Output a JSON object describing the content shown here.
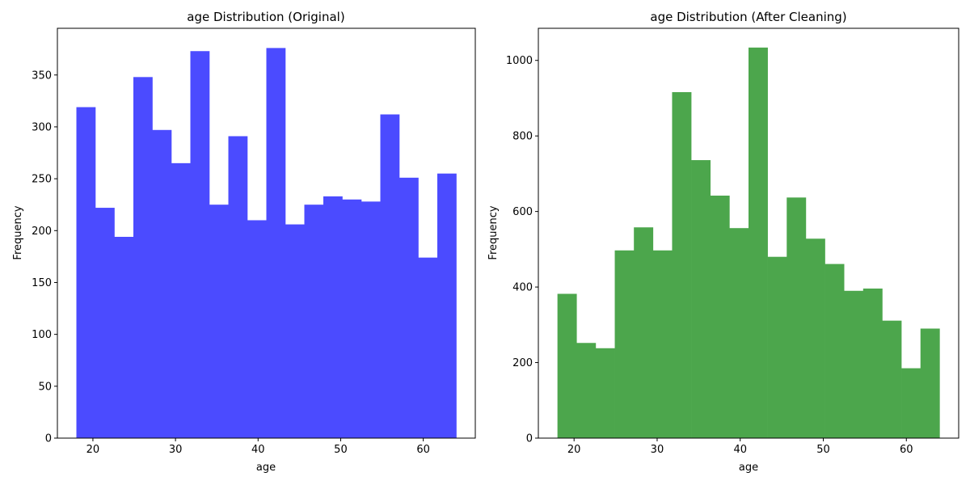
{
  "chart_data": [
    {
      "type": "bar",
      "title": "age Distribution (Original)",
      "xlabel": "age",
      "ylabel": "Frequency",
      "xlim": [
        15.7,
        66.3
      ],
      "ylim": [
        0,
        395
      ],
      "xticks": [
        20,
        30,
        40,
        50,
        60
      ],
      "yticks": [
        0,
        50,
        100,
        150,
        200,
        250,
        300,
        350
      ],
      "bin_edges": [
        18.0,
        20.3,
        22.6,
        24.9,
        27.2,
        29.5,
        31.8,
        34.1,
        36.4,
        38.7,
        41.0,
        43.3,
        45.6,
        47.9,
        50.2,
        52.5,
        54.8,
        57.1,
        59.4,
        61.7,
        64.0
      ],
      "values": [
        319,
        222,
        194,
        348,
        297,
        265,
        373,
        225,
        291,
        210,
        376,
        206,
        225,
        233,
        230,
        228,
        312,
        251,
        174,
        255
      ],
      "color": "#4b4bff",
      "grid": false
    },
    {
      "type": "bar",
      "title": "age Distribution (After Cleaning)",
      "xlabel": "age",
      "ylabel": "Frequency",
      "xlim": [
        15.7,
        66.3
      ],
      "ylim": [
        0,
        1085
      ],
      "xticks": [
        20,
        30,
        40,
        50,
        60
      ],
      "yticks": [
        0,
        200,
        400,
        600,
        800,
        1000
      ],
      "bin_edges": [
        18.0,
        20.3,
        22.6,
        24.9,
        27.2,
        29.5,
        31.8,
        34.1,
        36.4,
        38.7,
        41.0,
        43.3,
        45.6,
        47.9,
        50.2,
        52.5,
        54.8,
        57.1,
        59.4,
        61.7,
        64.0
      ],
      "values": [
        382,
        252,
        238,
        497,
        558,
        497,
        916,
        736,
        642,
        556,
        1034,
        480,
        637,
        528,
        461,
        390,
        396,
        311,
        185,
        290
      ],
      "color": "#4ca64c",
      "grid": false
    }
  ]
}
